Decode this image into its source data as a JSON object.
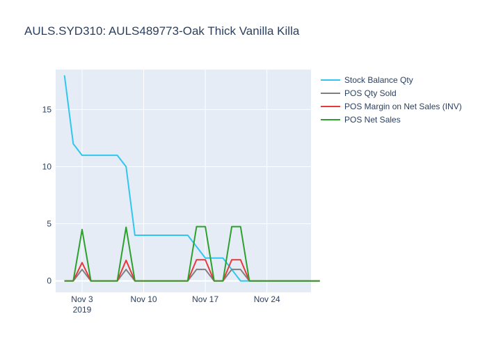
{
  "chart_data": {
    "type": "line",
    "title": "AULS.SYD310:  AULS489773-Oak Thick Vanilla Killa",
    "xlabel": "",
    "ylabel": "",
    "x_ticks": [
      {
        "date": "2019-11-03",
        "label": "Nov 3",
        "sublabel": "2019"
      },
      {
        "date": "2019-11-10",
        "label": "Nov 10",
        "sublabel": ""
      },
      {
        "date": "2019-11-17",
        "label": "Nov 17",
        "sublabel": ""
      },
      {
        "date": "2019-11-24",
        "label": "Nov 24",
        "sublabel": ""
      }
    ],
    "y_ticks": [
      0,
      5,
      10,
      15
    ],
    "xlim": [
      "2019-10-31",
      "2019-11-29"
    ],
    "ylim": [
      -1,
      18.5
    ],
    "grid": true,
    "legend_position": "right",
    "x": [
      "2019-11-01",
      "2019-11-02",
      "2019-11-03",
      "2019-11-04",
      "2019-11-05",
      "2019-11-06",
      "2019-11-07",
      "2019-11-08",
      "2019-11-09",
      "2019-11-10",
      "2019-11-11",
      "2019-11-12",
      "2019-11-13",
      "2019-11-14",
      "2019-11-15",
      "2019-11-16",
      "2019-11-17",
      "2019-11-18",
      "2019-11-19",
      "2019-11-20",
      "2019-11-21",
      "2019-11-22",
      "2019-11-23",
      "2019-11-24",
      "2019-11-25",
      "2019-11-26",
      "2019-11-27",
      "2019-11-28",
      "2019-11-29",
      "2019-11-30"
    ],
    "series": [
      {
        "name": "Stock Balance Qty",
        "color": "#2ec7ef",
        "x_start": "2019-11-01",
        "values": [
          18,
          12,
          11,
          11,
          11,
          11,
          11,
          10,
          4,
          4,
          4,
          4,
          4,
          4,
          4,
          3,
          2,
          2,
          2,
          1,
          0,
          0,
          0,
          0,
          0,
          0,
          0,
          0,
          0,
          0
        ]
      },
      {
        "name": "POS Qty Sold",
        "color": "#7f7f7f",
        "x_start": "2019-11-01",
        "values": [
          0,
          0,
          1,
          0,
          0,
          0,
          0,
          1,
          0,
          0,
          0,
          0,
          0,
          0,
          0,
          1,
          1,
          0,
          0,
          1,
          1,
          0,
          0,
          0,
          0,
          0,
          0,
          0,
          0,
          0
        ]
      },
      {
        "name": "POS Margin on Net Sales (INV)",
        "color": "#e8383b",
        "x_start": "2019-11-01",
        "values": [
          0,
          0,
          1.6,
          0,
          0,
          0,
          0,
          1.8,
          0,
          0,
          0,
          0,
          0,
          0,
          0,
          1.85,
          1.85,
          0,
          0,
          1.85,
          1.85,
          0,
          0,
          0,
          0,
          0,
          0,
          0,
          0,
          0
        ]
      },
      {
        "name": "POS Net Sales",
        "color": "#2ca02c",
        "x_start": "2019-11-01",
        "values": [
          0,
          0,
          4.5,
          0,
          0,
          0,
          0,
          4.7,
          0,
          0,
          0,
          0,
          0,
          0,
          0,
          4.75,
          4.75,
          0,
          0,
          4.75,
          4.75,
          0,
          0,
          0,
          0,
          0,
          0,
          0,
          0,
          0
        ]
      }
    ]
  }
}
